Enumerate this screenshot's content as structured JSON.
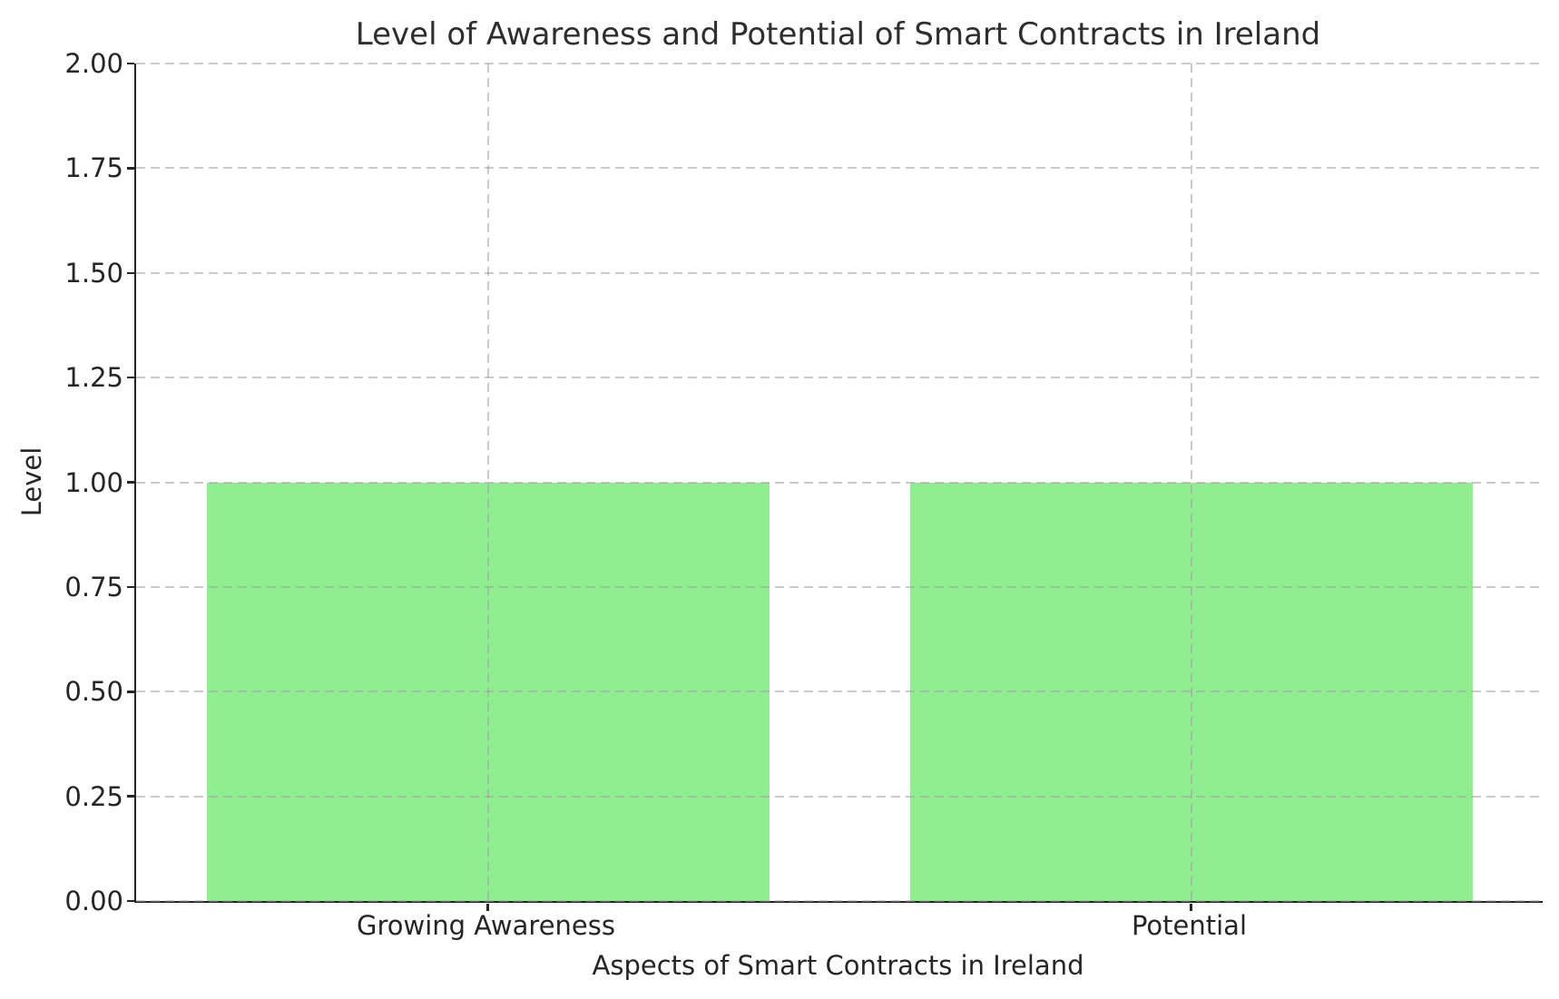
{
  "chart_data": {
    "type": "bar",
    "title": "Level of Awareness and Potential of Smart Contracts in Ireland",
    "xlabel": "Aspects of Smart Contracts in Ireland",
    "ylabel": "Level",
    "categories": [
      "Growing Awareness",
      "Potential"
    ],
    "values": [
      1,
      1
    ],
    "ylim": [
      0,
      2
    ],
    "ytick_step": 0.25,
    "ytick_labels": [
      "0.00",
      "0.25",
      "0.50",
      "0.75",
      "1.00",
      "1.25",
      "1.50",
      "1.75",
      "2.00"
    ],
    "bar_color": "#90ee90",
    "grid": {
      "on": true,
      "style": "dashed",
      "color": "#c8c8c8",
      "above_bars": true
    },
    "legend": null,
    "text_color": "#262626",
    "background": "#ffffff"
  }
}
